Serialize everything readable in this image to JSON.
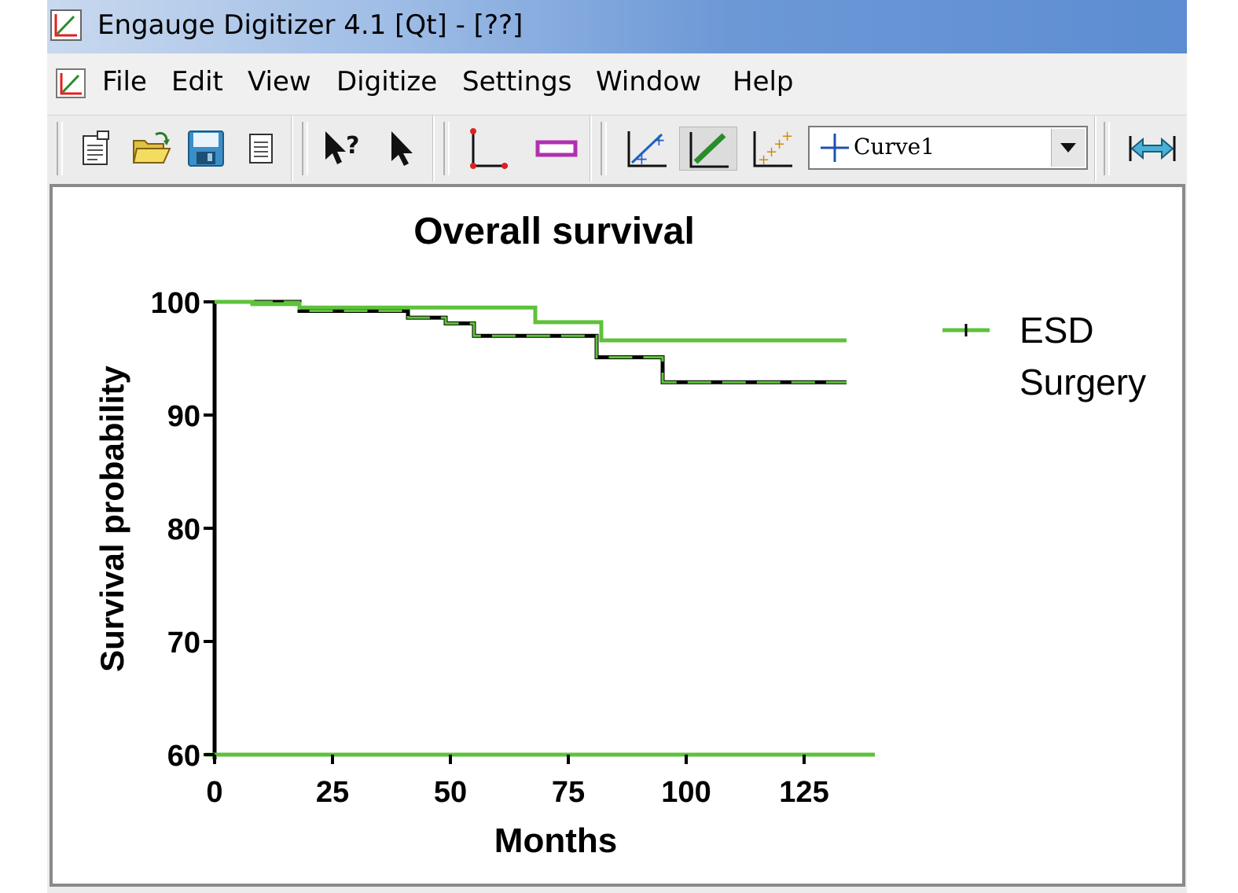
{
  "window": {
    "title": "Engauge Digitizer 4.1 [Qt] - [??]"
  },
  "menu": {
    "items": [
      "File",
      "Edit",
      "View",
      "Digitize",
      "Settings",
      "Window",
      "Help"
    ]
  },
  "toolbar": {
    "curve_select_value": "Curve1",
    "icons": [
      "new-document-icon",
      "open-folder-icon",
      "save-icon",
      "print-preview-icon",
      "whats-this-icon",
      "select-pointer-icon",
      "axis-point-icon",
      "scale-bar-icon",
      "curve-point-icon",
      "segment-fill-icon",
      "point-match-icon",
      "measure-distance-icon"
    ]
  },
  "colors": {
    "green": "#5ec23a",
    "black": "#000000",
    "window_blue": "#6c98d6"
  },
  "chart_data": {
    "type": "line",
    "title": "Overall survival",
    "xlabel": "Months",
    "ylabel": "Survival probability",
    "xlim": [
      0,
      140
    ],
    "ylim": [
      60,
      100
    ],
    "xticks": [
      0,
      25,
      50,
      75,
      100,
      125
    ],
    "yticks": [
      60,
      70,
      80,
      90,
      100
    ],
    "legend_position": "right",
    "series": [
      {
        "name": "ESD",
        "step_points": [
          [
            0,
            100
          ],
          [
            18,
            100
          ],
          [
            18,
            99.2
          ],
          [
            41,
            99.2
          ],
          [
            41,
            98.6
          ],
          [
            49,
            98.6
          ],
          [
            49,
            98.1
          ],
          [
            55,
            98.1
          ],
          [
            55,
            97.0
          ],
          [
            81,
            97.0
          ],
          [
            81,
            95.1
          ],
          [
            95,
            95.1
          ],
          [
            95,
            92.9
          ],
          [
            134,
            92.9
          ]
        ]
      },
      {
        "name": "Surgery",
        "step_points": [
          [
            0,
            100
          ],
          [
            8,
            100
          ],
          [
            8,
            99.8
          ],
          [
            18,
            99.8
          ],
          [
            18,
            99.5
          ],
          [
            68,
            99.5
          ],
          [
            68,
            98.2
          ],
          [
            82,
            98.2
          ],
          [
            82,
            96.6
          ],
          [
            134,
            96.6
          ]
        ]
      }
    ]
  }
}
